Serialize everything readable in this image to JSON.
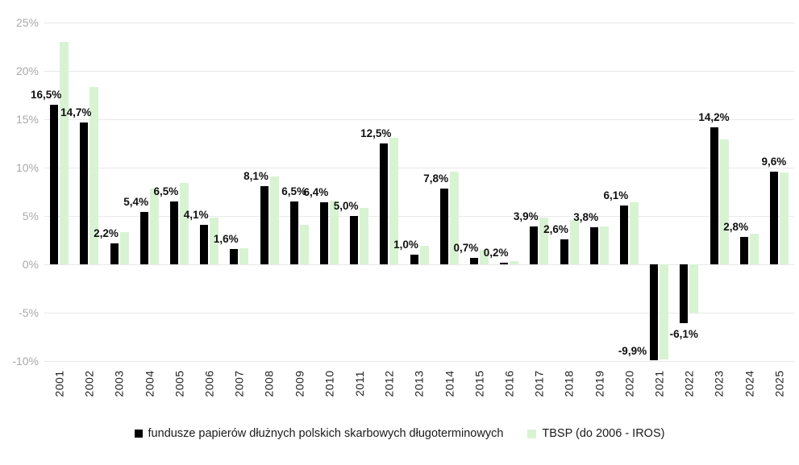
{
  "chart_data": {
    "type": "bar",
    "title": "",
    "categories": [
      "2001",
      "2002",
      "2003",
      "2004",
      "2005",
      "2006",
      "2007",
      "2008",
      "2009",
      "2010",
      "2011",
      "2012",
      "2013",
      "2014",
      "2015",
      "2016",
      "2017",
      "2018",
      "2019",
      "2020",
      "2021",
      "2022",
      "2023",
      "2024",
      "2025"
    ],
    "series": [
      {
        "name": "fundusze papierów dłużnych polskich skarbowych długoterminowych",
        "color": "#000000",
        "values": [
          16.5,
          14.7,
          2.2,
          5.4,
          6.5,
          4.1,
          1.6,
          8.1,
          6.5,
          6.4,
          5.0,
          12.5,
          1.0,
          7.8,
          0.7,
          0.2,
          3.9,
          2.6,
          3.8,
          6.1,
          -9.9,
          -6.1,
          14.2,
          2.8,
          9.6
        ],
        "labels": [
          "16,5%",
          "14,7%",
          "2,2%",
          "5,4%",
          "6,5%",
          "4,1%",
          "1,6%",
          "8,1%",
          "6,5%",
          "6,4%",
          "5,0%",
          "12,5%",
          "1,0%",
          "7,8%",
          "0,7%",
          "0,2%",
          "3,9%",
          "2,6%",
          "3,8%",
          "6,1%",
          "-9,9%",
          "-6,1%",
          "14,2%",
          "2,8%",
          "9,6%"
        ]
      },
      {
        "name": "TBSP (do 2006 - IROS)",
        "color": "#d8f3d2",
        "values": [
          23.0,
          18.3,
          3.3,
          7.8,
          8.4,
          4.8,
          1.7,
          9.1,
          4.1,
          6.6,
          5.8,
          13.1,
          1.9,
          9.6,
          1.5,
          0.3,
          4.8,
          4.6,
          3.9,
          6.4,
          -9.8,
          -5.0,
          12.9,
          3.2,
          9.5
        ]
      }
    ],
    "xlabel": "",
    "ylabel": "",
    "ylim": [
      -10,
      25
    ],
    "yticks": [
      {
        "value": 25,
        "label": "25%"
      },
      {
        "value": 20,
        "label": "20%"
      },
      {
        "value": 15,
        "label": "15%"
      },
      {
        "value": 10,
        "label": "10%"
      },
      {
        "value": 5,
        "label": "5%"
      },
      {
        "value": 0,
        "label": "0%"
      },
      {
        "value": -5,
        "label": "-5%"
      },
      {
        "value": -10,
        "label": "-10%"
      }
    ],
    "grid": true,
    "legend_position": "bottom"
  },
  "colors": {
    "series1": "#000000",
    "series2": "#d8f3d2",
    "gridline": "#e9e9e9",
    "axis_text": "#a9a9a9",
    "label_text": "#111111"
  }
}
